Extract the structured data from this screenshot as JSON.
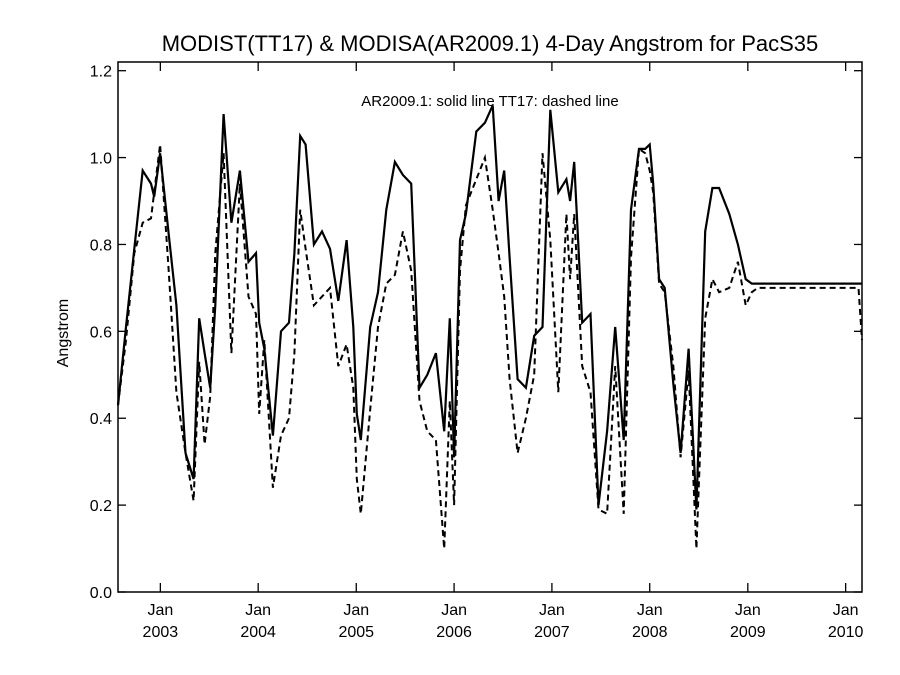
{
  "chart_data": {
    "type": "line",
    "title": "MODIST(TT17) & MODISA(AR2009.1) 4-Day Angstrom for PacS35",
    "xlabel": "",
    "ylabel": "Angstrom",
    "annotation": "AR2009.1: solid line   TT17: dashed line",
    "ylim": [
      0.0,
      1.22
    ],
    "xlim": [
      "2002-07-27",
      "2010-03-03"
    ],
    "yticks": [
      0.0,
      0.2,
      0.4,
      0.6,
      0.8,
      1.0,
      1.2
    ],
    "ytick_labels": [
      "0.0",
      "0.2",
      "0.4",
      "0.6",
      "0.8",
      "1.0",
      "1.2"
    ],
    "xticks": [
      {
        "date": "2003-01-01",
        "month": "Jan",
        "year": "2003"
      },
      {
        "date": "2004-01-01",
        "month": "Jan",
        "year": "2004"
      },
      {
        "date": "2005-01-01",
        "month": "Jan",
        "year": "2005"
      },
      {
        "date": "2006-01-01",
        "month": "Jan",
        "year": "2006"
      },
      {
        "date": "2007-01-01",
        "month": "Jan",
        "year": "2007"
      },
      {
        "date": "2008-01-01",
        "month": "Jan",
        "year": "2008"
      },
      {
        "date": "2009-01-01",
        "month": "Jan",
        "year": "2009"
      },
      {
        "date": "2010-01-01",
        "month": "Jan",
        "year": "2010"
      }
    ],
    "grid": false,
    "series": [
      {
        "name": "AR2009.1",
        "style": "solid",
        "color": "#000000",
        "x": [
          "2002-07-27",
          "2002-08-26",
          "2002-09-26",
          "2002-10-27",
          "2002-11-27",
          "2002-12-09",
          "2002-12-31",
          "2003-01-31",
          "2003-03-02",
          "2003-04-05",
          "2003-05-05",
          "2003-05-26",
          "2003-06-15",
          "2003-07-06",
          "2003-07-25",
          "2003-08-25",
          "2003-09-23",
          "2003-10-25",
          "2003-11-26",
          "2003-12-24",
          "2004-01-05",
          "2004-01-24",
          "2004-02-25",
          "2004-03-26",
          "2004-04-25",
          "2004-05-15",
          "2004-06-06",
          "2004-06-26",
          "2004-07-27",
          "2004-08-26",
          "2004-09-25",
          "2004-10-26",
          "2004-11-26",
          "2004-12-21",
          "2005-01-03",
          "2005-01-18",
          "2005-02-22",
          "2005-03-23",
          "2005-04-23",
          "2005-05-25",
          "2005-06-24",
          "2005-07-25",
          "2005-08-25",
          "2005-09-23",
          "2005-10-25",
          "2005-11-25",
          "2005-12-16",
          "2006-01-01",
          "2006-01-23",
          "2006-02-14",
          "2006-03-25",
          "2006-04-26",
          "2006-05-25",
          "2006-06-16",
          "2006-07-07",
          "2006-07-27",
          "2006-08-26",
          "2006-09-26",
          "2006-10-27",
          "2006-11-27",
          "2006-12-26",
          "2007-01-25",
          "2007-02-24",
          "2007-03-10",
          "2007-03-25",
          "2007-04-24",
          "2007-05-25",
          "2007-06-24",
          "2007-07-26",
          "2007-08-25",
          "2007-09-26",
          "2007-10-23",
          "2007-11-22",
          "2007-12-15",
          "2008-01-01",
          "2008-01-14",
          "2008-02-05",
          "2008-02-26",
          "2008-03-29",
          "2008-04-25",
          "2008-05-25",
          "2008-06-23",
          "2008-07-26",
          "2008-08-22",
          "2008-09-16",
          "2008-10-24",
          "2008-11-25",
          "2008-12-24",
          "2009-01-16",
          "2009-02-07",
          "2009-03-08",
          "2009-04-06",
          "2009-05-07",
          "2009-06-04",
          "2009-06-24",
          "2009-07-11",
          "2009-07-27",
          "2009-08-23",
          "2009-09-24",
          "2009-10-25",
          "2009-11-23",
          "2009-12-24",
          "2010-01-14",
          "2010-02-04",
          "2010-02-18",
          "2010-03-03"
        ],
        "y": [
          0.43,
          0.61,
          0.79,
          0.97,
          0.94,
          0.91,
          1.01,
          0.83,
          0.66,
          0.32,
          0.26,
          0.63,
          0.55,
          0.47,
          0.66,
          1.1,
          0.85,
          0.97,
          0.76,
          0.78,
          0.62,
          0.56,
          0.36,
          0.6,
          0.62,
          0.78,
          1.05,
          1.03,
          0.8,
          0.83,
          0.79,
          0.67,
          0.81,
          0.61,
          0.41,
          0.35,
          0.61,
          0.69,
          0.88,
          0.99,
          0.96,
          0.94,
          0.47,
          0.5,
          0.55,
          0.37,
          0.63,
          0.31,
          0.81,
          0.87,
          1.06,
          1.08,
          1.12,
          0.9,
          0.97,
          0.77,
          0.49,
          0.47,
          0.59,
          0.61,
          1.11,
          0.92,
          0.95,
          0.9,
          0.99,
          0.62,
          0.64,
          0.2,
          0.37,
          0.61,
          0.35,
          0.88,
          1.02,
          1.02,
          1.03,
          0.94,
          0.72,
          0.7,
          0.48,
          0.32,
          0.56,
          0.19,
          0.83,
          0.93,
          0.93,
          0.87,
          0.8,
          0.72,
          0.71,
          0.71,
          0.71,
          0.71,
          0.71,
          0.71,
          0.71,
          0.71,
          0.71,
          0.71,
          0.71,
          0.71,
          0.71,
          0.71,
          0.71,
          0.71,
          0.71,
          0.71
        ]
      },
      {
        "name": "TT17",
        "style": "dashed",
        "color": "#000000",
        "x": [
          "2002-07-27",
          "2002-08-26",
          "2002-09-26",
          "2002-10-27",
          "2002-11-27",
          "2002-12-09",
          "2002-12-31",
          "2003-01-31",
          "2003-03-02",
          "2003-04-05",
          "2003-05-05",
          "2003-05-26",
          "2003-06-15",
          "2003-07-06",
          "2003-07-25",
          "2003-08-25",
          "2003-09-23",
          "2003-10-25",
          "2003-11-26",
          "2003-12-24",
          "2004-01-05",
          "2004-01-24",
          "2004-02-25",
          "2004-03-26",
          "2004-04-25",
          "2004-05-15",
          "2004-06-06",
          "2004-06-26",
          "2004-07-27",
          "2004-08-26",
          "2004-09-25",
          "2004-10-26",
          "2004-11-26",
          "2004-12-21",
          "2005-01-03",
          "2005-01-18",
          "2005-02-22",
          "2005-03-23",
          "2005-04-23",
          "2005-05-25",
          "2005-06-24",
          "2005-07-25",
          "2005-08-25",
          "2005-09-23",
          "2005-10-25",
          "2005-11-25",
          "2005-12-16",
          "2006-01-01",
          "2006-01-23",
          "2006-02-14",
          "2006-03-25",
          "2006-04-26",
          "2006-05-25",
          "2006-06-16",
          "2006-07-07",
          "2006-07-27",
          "2006-08-26",
          "2006-09-26",
          "2006-10-27",
          "2006-11-27",
          "2006-12-26",
          "2007-01-25",
          "2007-02-24",
          "2007-03-10",
          "2007-03-25",
          "2007-04-24",
          "2007-05-25",
          "2007-06-24",
          "2007-07-26",
          "2007-08-25",
          "2007-09-26",
          "2007-10-23",
          "2007-11-22",
          "2007-12-15",
          "2008-01-01",
          "2008-01-14",
          "2008-02-05",
          "2008-02-26",
          "2008-03-29",
          "2008-04-25",
          "2008-05-25",
          "2008-06-23",
          "2008-07-26",
          "2008-08-22",
          "2008-09-16",
          "2008-10-24",
          "2008-11-25",
          "2008-12-24",
          "2009-01-16",
          "2009-02-07",
          "2009-03-08",
          "2009-04-06",
          "2009-05-07",
          "2009-06-04",
          "2009-06-24",
          "2009-07-11",
          "2009-07-27",
          "2009-08-23",
          "2009-09-24",
          "2009-10-25",
          "2009-11-23",
          "2009-12-24",
          "2010-01-14",
          "2010-02-04",
          "2010-02-18",
          "2010-03-03"
        ],
        "y": [
          0.43,
          0.58,
          0.78,
          0.85,
          0.86,
          0.92,
          1.03,
          0.75,
          0.46,
          0.32,
          0.21,
          0.53,
          0.34,
          0.45,
          0.78,
          1.01,
          0.55,
          0.94,
          0.68,
          0.64,
          0.41,
          0.58,
          0.24,
          0.36,
          0.4,
          0.55,
          0.88,
          0.79,
          0.66,
          0.68,
          0.7,
          0.52,
          0.57,
          0.47,
          0.26,
          0.18,
          0.42,
          0.61,
          0.71,
          0.73,
          0.83,
          0.74,
          0.44,
          0.37,
          0.35,
          0.1,
          0.44,
          0.2,
          0.74,
          0.89,
          0.95,
          1.0,
          0.88,
          0.78,
          0.68,
          0.49,
          0.32,
          0.4,
          0.5,
          1.01,
          0.81,
          0.46,
          0.87,
          0.72,
          0.87,
          0.52,
          0.46,
          0.19,
          0.18,
          0.52,
          0.18,
          0.77,
          1.02,
          1.01,
          0.97,
          0.92,
          0.71,
          0.69,
          0.52,
          0.31,
          0.51,
          0.1,
          0.63,
          0.72,
          0.69,
          0.7,
          0.76,
          0.66,
          0.69,
          0.7,
          0.7,
          0.7,
          0.7,
          0.7,
          0.7,
          0.7,
          0.7,
          0.7,
          0.7,
          0.7,
          0.7,
          0.7,
          0.7,
          0.7,
          0.7,
          0.58
        ]
      }
    ]
  }
}
